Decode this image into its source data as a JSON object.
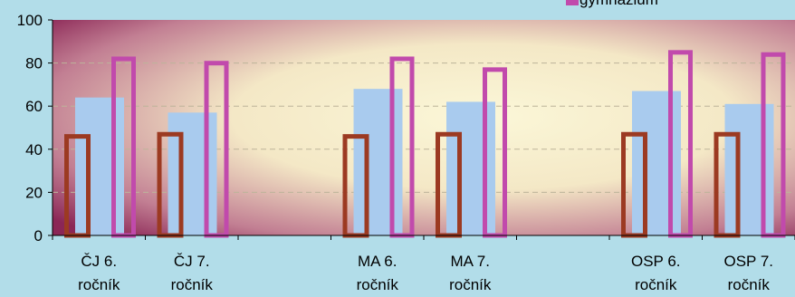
{
  "colors": {
    "background": "#b2dde9",
    "series_a_outline": "#9c3a22",
    "series_b_fill": "#a9cbee",
    "series_c_outline": "#c14aac",
    "plot_bg_light": "#fbf7d8",
    "plot_bg_dark": "#8b2656"
  },
  "chart_data": {
    "type": "bar",
    "ylim": [
      0,
      100
    ],
    "yticks": [
      0,
      20,
      40,
      60,
      80,
      100
    ],
    "grid": true,
    "legend_position": "top-right",
    "categories": [
      "ČJ 6.\nročník",
      "ČJ 7.\nročník",
      "",
      "MA 6.\nročník",
      "MA 7.\nročník",
      "",
      "OSP 6.\nročník",
      "OSP 7.\nročník"
    ],
    "series": [
      {
        "name": "",
        "style": "outline",
        "color": "#9c3a22",
        "values": [
          47,
          48,
          null,
          47,
          48,
          null,
          48,
          48
        ]
      },
      {
        "name": "",
        "style": "filled",
        "color": "#a9cbee",
        "values": [
          64,
          57,
          null,
          68,
          62,
          null,
          67,
          61
        ]
      },
      {
        "name": "gymnázium",
        "style": "outline",
        "color": "#c14aac",
        "values": [
          83,
          81,
          null,
          83,
          78,
          null,
          86,
          85
        ]
      }
    ]
  }
}
